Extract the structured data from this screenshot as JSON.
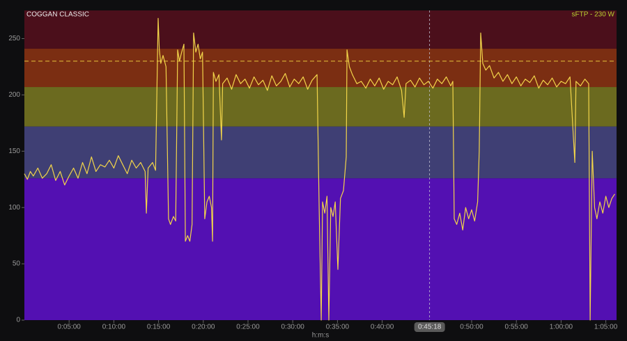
{
  "chart_data": {
    "type": "line",
    "title": "COGGAN CLASSIC",
    "ftp": 230,
    "ftp_label": "sFTP - 230 W",
    "x_label": "h:m:s",
    "color": "#f2d54a",
    "zones": [
      {
        "from": 0,
        "to": 126,
        "color": "#5310b2"
      },
      {
        "from": 126,
        "to": 172,
        "color": "#3f3f74"
      },
      {
        "from": 172,
        "to": 207,
        "color": "#6b6a1f"
      },
      {
        "from": 207,
        "to": 241,
        "color": "#7b2e12"
      },
      {
        "from": 241,
        "to": 275,
        "color": "#4b0f1b"
      }
    ],
    "xlim": [
      0,
      3972
    ],
    "ylim": [
      0,
      275
    ],
    "yticks": [
      0,
      50,
      100,
      150,
      200,
      250
    ],
    "xticks": [
      {
        "value": 300,
        "label": "0:05:00"
      },
      {
        "value": 600,
        "label": "0:10:00"
      },
      {
        "value": 900,
        "label": "0:15:00"
      },
      {
        "value": 1200,
        "label": "0:20:00"
      },
      {
        "value": 1500,
        "label": "0:25:00"
      },
      {
        "value": 1800,
        "label": "0:30:00"
      },
      {
        "value": 2100,
        "label": "0:35:00"
      },
      {
        "value": 2400,
        "label": "0:40:00"
      },
      {
        "value": 3000,
        "label": "0:50:00"
      },
      {
        "value": 3300,
        "label": "0:55:00"
      },
      {
        "value": 3600,
        "label": "1:00:00"
      },
      {
        "value": 3900,
        "label": "1:05:00"
      }
    ],
    "cursor": {
      "value": 2718,
      "label": "0:45:18"
    },
    "x": [
      0,
      20,
      40,
      60,
      90,
      120,
      150,
      180,
      210,
      240,
      270,
      300,
      330,
      360,
      390,
      420,
      450,
      480,
      510,
      540,
      570,
      600,
      630,
      660,
      690,
      720,
      750,
      780,
      810,
      818,
      830,
      860,
      880,
      897,
      905,
      915,
      930,
      950,
      967,
      980,
      1000,
      1015,
      1028,
      1040,
      1055,
      1070,
      1080,
      1095,
      1110,
      1125,
      1135,
      1150,
      1165,
      1180,
      1195,
      1210,
      1225,
      1240,
      1255,
      1262,
      1268,
      1285,
      1305,
      1322,
      1330,
      1360,
      1390,
      1420,
      1450,
      1480,
      1510,
      1540,
      1570,
      1600,
      1630,
      1660,
      1690,
      1720,
      1750,
      1780,
      1810,
      1840,
      1870,
      1900,
      1930,
      1963,
      1977,
      1991,
      2000,
      2015,
      2030,
      2042,
      2055,
      2070,
      2085,
      2103,
      2120,
      2140,
      2159,
      2164,
      2180,
      2200,
      2230,
      2260,
      2290,
      2320,
      2350,
      2380,
      2410,
      2440,
      2470,
      2500,
      2530,
      2547,
      2560,
      2590,
      2620,
      2650,
      2680,
      2710,
      2740,
      2770,
      2800,
      2830,
      2860,
      2874,
      2883,
      2900,
      2920,
      2940,
      2960,
      2980,
      3000,
      3020,
      3040,
      3051,
      3061,
      3075,
      3095,
      3120,
      3150,
      3180,
      3210,
      3240,
      3270,
      3300,
      3330,
      3360,
      3390,
      3420,
      3450,
      3480,
      3510,
      3540,
      3570,
      3600,
      3630,
      3660,
      3692,
      3700,
      3730,
      3760,
      3785,
      3795,
      3809,
      3825,
      3840,
      3860,
      3880,
      3900,
      3920,
      3940,
      3960
    ],
    "values": [
      130,
      125,
      132,
      128,
      135,
      126,
      130,
      138,
      124,
      132,
      120,
      128,
      135,
      126,
      140,
      130,
      145,
      132,
      138,
      136,
      142,
      135,
      146,
      138,
      130,
      142,
      135,
      140,
      132,
      95,
      135,
      140,
      133,
      268,
      240,
      228,
      235,
      225,
      90,
      85,
      92,
      88,
      240,
      230,
      238,
      245,
      70,
      75,
      70,
      85,
      255,
      238,
      245,
      232,
      238,
      90,
      105,
      110,
      100,
      70,
      220,
      212,
      218,
      160,
      210,
      215,
      205,
      218,
      210,
      214,
      206,
      216,
      209,
      213,
      204,
      217,
      208,
      212,
      219,
      207,
      214,
      210,
      216,
      205,
      213,
      218,
      100,
      0,
      105,
      95,
      110,
      0,
      100,
      92,
      105,
      45,
      108,
      115,
      145,
      240,
      225,
      218,
      210,
      212,
      206,
      214,
      208,
      215,
      205,
      212,
      209,
      216,
      204,
      180,
      210,
      213,
      207,
      215,
      209,
      212,
      206,
      214,
      210,
      216,
      208,
      212,
      90,
      85,
      95,
      80,
      100,
      90,
      98,
      88,
      105,
      150,
      255,
      228,
      222,
      226,
      215,
      220,
      212,
      218,
      210,
      216,
      208,
      214,
      211,
      217,
      206,
      213,
      209,
      215,
      207,
      212,
      210,
      216,
      140,
      212,
      208,
      214,
      210,
      0,
      150,
      100,
      90,
      105,
      95,
      110,
      100,
      108,
      112
    ]
  }
}
